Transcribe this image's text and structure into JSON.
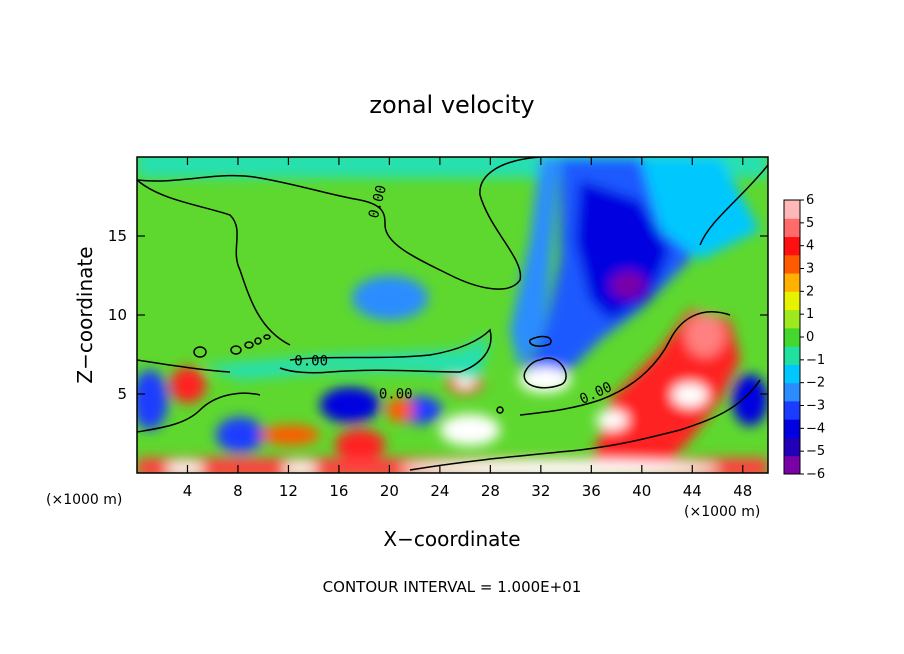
{
  "chart_data": {
    "type": "heatmap",
    "title": "zonal velocity",
    "xlabel": "X−coordinate",
    "ylabel": "Z−coordinate",
    "x_unit_left": "(×1000 m)",
    "x_unit_right": "(×1000 m)",
    "footnote": "CONTOUR INTERVAL = 1.000E+01",
    "xlim": [
      0,
      50
    ],
    "ylim": [
      0,
      20
    ],
    "x_ticks": [
      4,
      8,
      12,
      16,
      20,
      24,
      28,
      32,
      36,
      40,
      44,
      48
    ],
    "x_tick_labels": [
      "4",
      "8",
      "12",
      "16",
      "20",
      "24",
      "28",
      "32",
      "36",
      "40",
      "44",
      "48"
    ],
    "y_ticks": [
      5,
      10,
      15
    ],
    "y_tick_labels": [
      "5",
      "10",
      "15"
    ],
    "colorbar": {
      "ticks": [
        -6,
        -5,
        -4,
        -3,
        -2,
        -1,
        0,
        1,
        2,
        3,
        4,
        5,
        6
      ],
      "tick_labels": [
        "−6",
        "−5",
        "−4",
        "−3",
        "−2",
        "−1",
        "0",
        "1",
        "2",
        "3",
        "4",
        "5",
        "6"
      ],
      "colors": [
        "#7a00a8",
        "#2200b8",
        "#0000e0",
        "#1a3cff",
        "#2a8cff",
        "#00c8ff",
        "#22e0a0",
        "#44d82e",
        "#9ee81e",
        "#e6f200",
        "#ffb000",
        "#ff5a00",
        "#ff1010",
        "#ff6a6a",
        "#ffb8b8"
      ]
    },
    "contour_labels": [
      {
        "text": "0.00",
        "x": 19.4,
        "y": 17.1,
        "angle": -75
      },
      {
        "text": "0.00",
        "x": 13.8,
        "y": 6.8,
        "angle": 0
      },
      {
        "text": "0.00",
        "x": 20.5,
        "y": 4.7,
        "angle": 0
      },
      {
        "text": "0.00",
        "x": 36.5,
        "y": 4.8,
        "angle": -25
      }
    ],
    "grid": false
  }
}
